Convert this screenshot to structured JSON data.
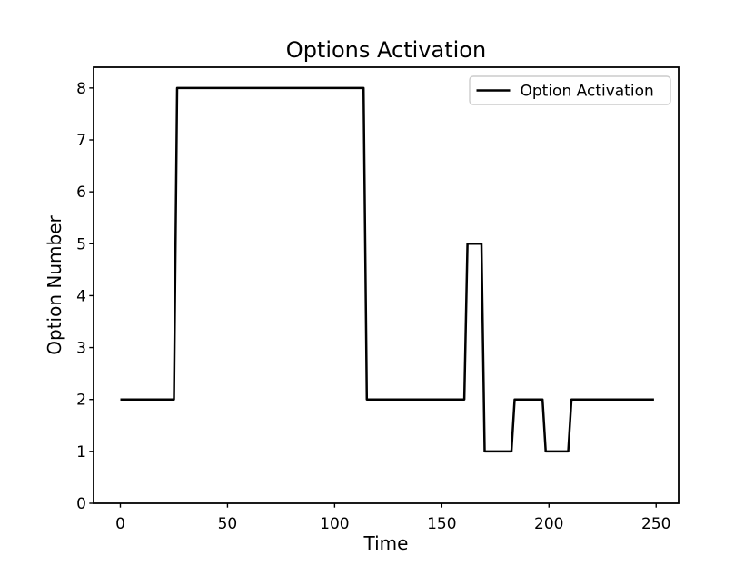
{
  "figure_title": "Options Activation",
  "colors": {
    "line": "#000000",
    "text": "#000000",
    "background": "#ffffff",
    "legend_border": "#cccccc",
    "legend_fill": "#ffffff"
  },
  "chart_data": {
    "type": "line",
    "title": "Options Activation",
    "xlabel": "Time",
    "ylabel": "Option Number",
    "xlim": [
      -12.5,
      260.5
    ],
    "ylim": [
      0,
      8.4
    ],
    "xticks": [
      0,
      50,
      100,
      150,
      200,
      250
    ],
    "yticks": [
      0,
      1,
      2,
      3,
      4,
      5,
      6,
      7,
      8
    ],
    "grid": false,
    "legend": {
      "position": "upper right",
      "entries": [
        {
          "label": "Option Activation",
          "color": "#000000",
          "line_style": "solid"
        }
      ]
    },
    "series": [
      {
        "name": "Option Activation",
        "color": "#000000",
        "line_width": 2.5,
        "points": [
          [
            0,
            2
          ],
          [
            25,
            2
          ],
          [
            26.5,
            8
          ],
          [
            113.5,
            8
          ],
          [
            115,
            2
          ],
          [
            160.5,
            2
          ],
          [
            162,
            5
          ],
          [
            168.5,
            5
          ],
          [
            170,
            1
          ],
          [
            182.5,
            1
          ],
          [
            184,
            2
          ],
          [
            197,
            2
          ],
          [
            198.5,
            1
          ],
          [
            209,
            1
          ],
          [
            210.5,
            2
          ],
          [
            249,
            2
          ]
        ]
      }
    ]
  }
}
